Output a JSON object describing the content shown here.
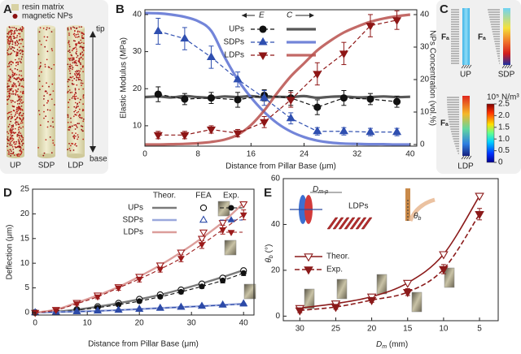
{
  "panels": {
    "A": {
      "label": "A",
      "legend": [
        "resin matrix",
        "magnetic NPs"
      ],
      "pillars": [
        "UP",
        "SDP",
        "LDP"
      ],
      "tip": "tip",
      "base": "base"
    },
    "C": {
      "label": "C",
      "force": "Fₐ",
      "pillars": [
        "UP",
        "SDP",
        "LDP"
      ],
      "colorbar": {
        "title": "10⁵ N/m³",
        "lim": [
          0,
          2.5
        ],
        "ticks": [
          0,
          0.5,
          {
            "value": 1,
            "label": "1.0"
          },
          1.5,
          {
            "value": 2,
            "label": "2.0"
          },
          2.5
        ]
      }
    }
  },
  "chart_data": [
    {
      "type": "line",
      "panel": "B",
      "xlabel": "Distance from Pillar Base (μm)",
      "ylabel": "Elastic Modulus (MPa)",
      "y2label": "NPs Concentration (vol.%)",
      "xlim": [
        0,
        41
      ],
      "xticks": [
        0,
        8,
        16,
        24,
        32,
        40
      ],
      "ylim": [
        4.5,
        41.3
      ],
      "yticks": [
        10,
        20,
        30,
        40
      ],
      "y2lim": [
        -0.5,
        41.5
      ],
      "y2ticks": [
        0,
        10,
        20,
        30,
        40
      ],
      "arrows": [
        "E",
        "C"
      ],
      "series": [
        {
          "name": "UPs",
          "color": "#111111",
          "marker": "circle",
          "x": [
            2,
            6,
            10,
            14,
            18,
            22,
            26,
            30,
            34,
            38
          ],
          "values": [
            18.5,
            17.2,
            17.5,
            17.0,
            18.2,
            17.5,
            15.0,
            17.5,
            17.2,
            16.5
          ],
          "errors": [
            2,
            1.5,
            1.5,
            2,
            1.5,
            2,
            2,
            2,
            1.5,
            1.5
          ]
        },
        {
          "name": "SDPs",
          "color": "#2f4fb0",
          "marker": "triangle-up",
          "x": [
            2,
            6,
            10,
            14,
            18,
            22,
            26,
            30,
            34,
            38
          ],
          "values": [
            35.5,
            33.5,
            28.5,
            22.5,
            17.5,
            12.0,
            8.5,
            8.5,
            8.3,
            8.3
          ],
          "errors": [
            3.5,
            3,
            3,
            2,
            2,
            1.5,
            1,
            1,
            1,
            1
          ]
        },
        {
          "name": "LDPs",
          "color": "#8e1616",
          "marker": "triangle-down",
          "x": [
            2,
            6,
            10,
            14,
            18,
            22,
            26,
            30,
            34,
            38
          ],
          "values": [
            7.5,
            7.5,
            9.0,
            8.0,
            11.0,
            17.0,
            24.0,
            29.5,
            37.0,
            38.5
          ],
          "errors": [
            1,
            1,
            1,
            1,
            1.5,
            2,
            3,
            3,
            3,
            2.5
          ]
        },
        {
          "color": "#3a3a3a",
          "axis": "y2",
          "x": [
            0,
            2,
            4,
            6,
            8,
            10,
            12,
            14,
            16,
            18,
            20,
            22,
            24,
            26,
            28,
            30,
            32,
            34,
            36,
            38,
            40
          ],
          "values": [
            14.6,
            14.8,
            14.5,
            14.9,
            14.6,
            14.4,
            14.8,
            14.6,
            14.9,
            14.5,
            14.7,
            14.6,
            14.9,
            14.4,
            14.7,
            14.8,
            14.5,
            14.6,
            14.8,
            14.6,
            14.7
          ]
        },
        {
          "color": "#5b70d2",
          "axis": "y2",
          "x": [
            0,
            2,
            4,
            6,
            8,
            10,
            12,
            14,
            16,
            18,
            20,
            22,
            24,
            26,
            28,
            30,
            32,
            34,
            36,
            38,
            40
          ],
          "values": [
            40.5,
            40.4,
            40,
            39.3,
            38,
            35,
            27,
            20,
            14.5,
            10,
            6.5,
            4,
            2.3,
            1.2,
            0.6,
            0.3,
            0.2,
            0.1,
            0.1,
            0,
            0
          ]
        },
        {
          "color": "#b9504c",
          "axis": "y2",
          "x": [
            0,
            2,
            4,
            6,
            8,
            10,
            12,
            14,
            16,
            18,
            20,
            22,
            24,
            26,
            28,
            30,
            32,
            34,
            36,
            38,
            40
          ],
          "values": [
            0,
            0,
            0.1,
            0.2,
            0.4,
            0.8,
            1.5,
            3,
            6,
            10.5,
            16,
            21,
            25,
            29,
            32,
            34.5,
            36.3,
            37.8,
            38.8,
            39.5,
            40
          ]
        }
      ]
    },
    {
      "type": "line",
      "panel": "D",
      "xlabel": "Distance from Pillar Base (μm)",
      "ylabel": "Deflection (μm)",
      "xlim": [
        -0.5,
        42
      ],
      "xticks": [
        0,
        10,
        20,
        30,
        40
      ],
      "ylim": [
        -0.5,
        25
      ],
      "yticks": [
        0,
        5,
        10,
        15,
        20,
        25
      ],
      "legend_headers": [
        "Theor.",
        "FEA",
        "Exp."
      ],
      "x": [
        0,
        4,
        8,
        12,
        16,
        20,
        24,
        28,
        32,
        36,
        40
      ],
      "series": [
        {
          "name": "UPs",
          "color": "#111111",
          "line_color": "#7a7a7a",
          "marker": "circle",
          "theory": [
            0,
            0.2,
            0.6,
            1.2,
            1.9,
            2.7,
            3.6,
            4.7,
            5.9,
            7.2,
            8.6
          ],
          "fea": [
            0,
            0.2,
            0.6,
            1.2,
            1.9,
            2.7,
            3.6,
            4.6,
            5.8,
            7.0,
            8.5
          ],
          "exp": [
            0,
            0.15,
            0.5,
            1.0,
            1.6,
            2.3,
            3.2,
            4.2,
            5.3,
            6.5,
            8.0
          ],
          "exp_errors": [
            0,
            0.1,
            0.2,
            0.2,
            0.3,
            0.3,
            0.3,
            0.4,
            0.4,
            0.5,
            0.5
          ]
        },
        {
          "name": "SDPs",
          "color": "#2c4aa8",
          "line_color": "#9aa8dc",
          "marker": "triangle-up",
          "theory": [
            0,
            0.1,
            0.2,
            0.35,
            0.5,
            0.7,
            0.9,
            1.1,
            1.3,
            1.55,
            1.8
          ],
          "fea": [
            0,
            0.1,
            0.2,
            0.35,
            0.5,
            0.7,
            0.9,
            1.1,
            1.3,
            1.55,
            1.8
          ],
          "exp": [
            0,
            0.1,
            0.2,
            0.3,
            0.5,
            0.7,
            0.9,
            1.1,
            1.3,
            1.5,
            1.7
          ],
          "exp_errors": [
            0,
            0.05,
            0.1,
            0.1,
            0.1,
            0.1,
            0.1,
            0.15,
            0.15,
            0.15,
            0.2
          ]
        },
        {
          "name": "LDPs",
          "color": "#9b1b1b",
          "line_color": "#dc9d9a",
          "marker": "triangle-down",
          "theory": [
            0,
            0.6,
            2.0,
            3.5,
            5.2,
            7.3,
            9.6,
            12.2,
            15.1,
            18.3,
            22.2
          ],
          "fea": [
            0,
            0.6,
            2.0,
            3.5,
            5.2,
            7.3,
            9.6,
            12.2,
            15.0,
            18.2,
            22.0
          ],
          "exp": [
            0,
            0.5,
            1.8,
            3.2,
            5.0,
            6.8,
            8.8,
            11.0,
            13.8,
            16.8,
            19.8
          ],
          "exp_errors": [
            0,
            0.2,
            0.3,
            0.4,
            0.5,
            0.6,
            0.6,
            0.7,
            0.8,
            0.9,
            1.0
          ]
        }
      ]
    },
    {
      "type": "line",
      "panel": "E",
      "xlabel": {
        "main": "D",
        "sub": "m",
        "unit": " (mm)"
      },
      "ylabel": {
        "main": "θ",
        "sub": "b",
        "unit": " (°)"
      },
      "xlim": [
        32.3,
        2.4
      ],
      "xticks": [
        30,
        25,
        20,
        15,
        10,
        5
      ],
      "ylim": [
        -2,
        60
      ],
      "yticks": [
        0,
        20,
        40,
        60
      ],
      "inset_label": "LDPs",
      "inset_dim": {
        "main": "D",
        "sub": "m-p"
      },
      "angle": {
        "main": "θ",
        "sub": "b"
      },
      "series": [
        {
          "name": "Theor.",
          "color": "#8b1a1a",
          "marker": "triangle-down",
          "filled": false,
          "dashed": false,
          "x": [
            30,
            25,
            20,
            15,
            10,
            5
          ],
          "values": [
            3.5,
            5.5,
            8.5,
            14.5,
            27,
            52.5
          ]
        },
        {
          "name": "Exp.",
          "color": "#8b1a1a",
          "marker": "triangle-down",
          "filled": true,
          "dashed": true,
          "x": [
            30,
            25,
            20,
            15,
            10,
            5
          ],
          "values": [
            2.5,
            4,
            7,
            10.5,
            20.5,
            44.5
          ],
          "errors": [
            1,
            1,
            1,
            1.5,
            2,
            2.5
          ]
        }
      ]
    }
  ]
}
